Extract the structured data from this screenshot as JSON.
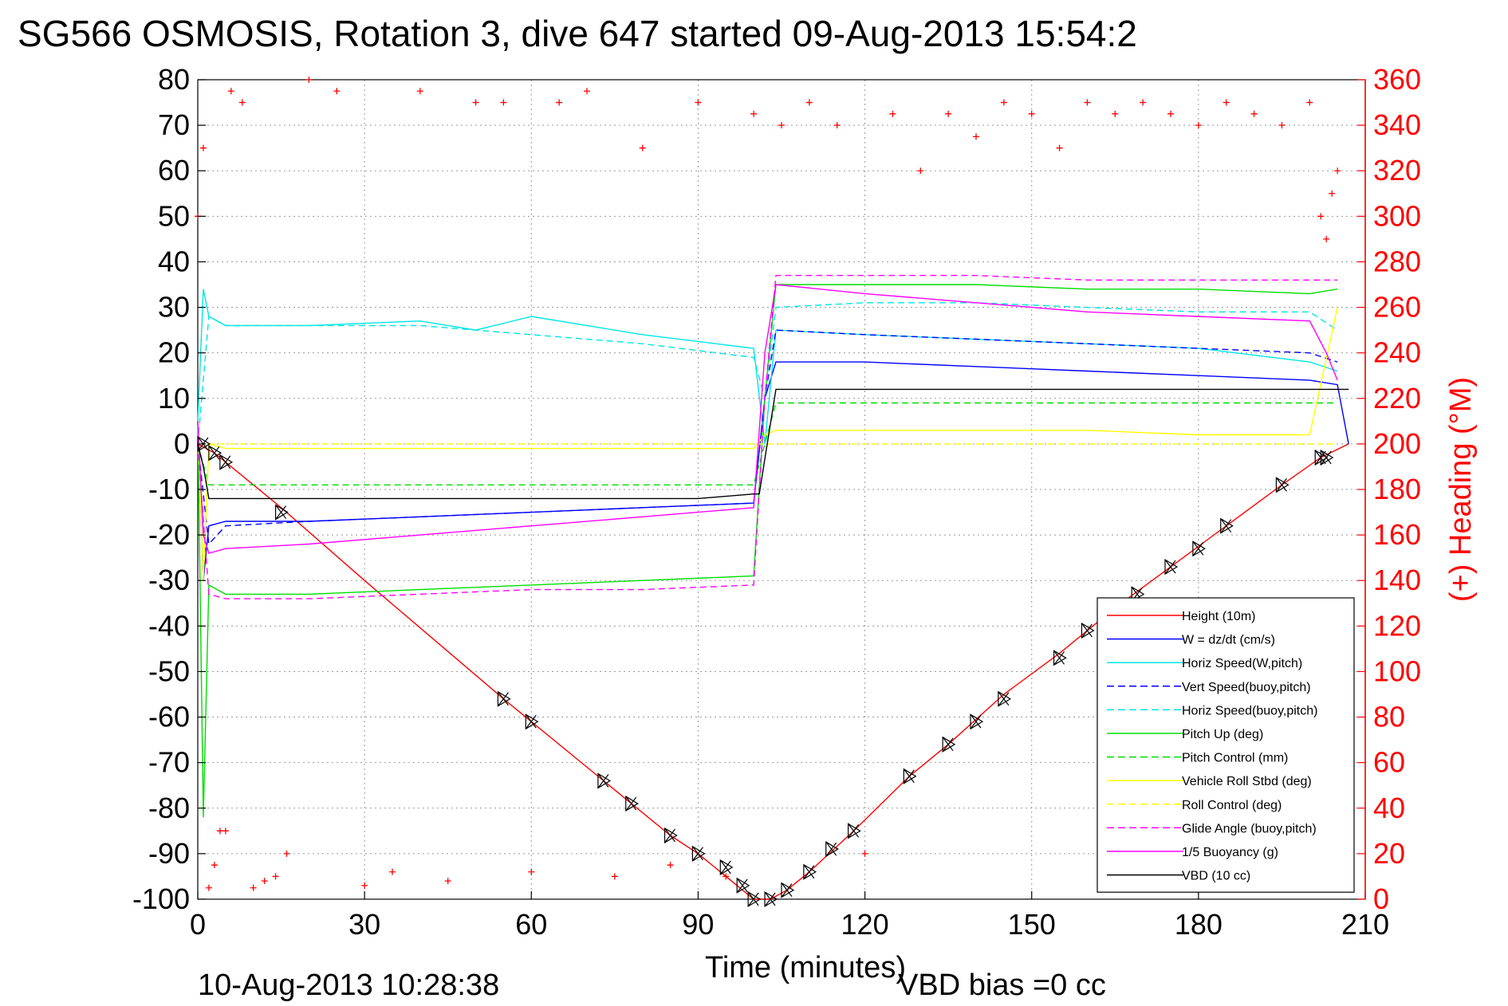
{
  "chart_data": {
    "type": "line",
    "title": "SG566 OSMOSIS, Rotation 3, dive 647 started 09-Aug-2013 15:54:2",
    "xlabel": "Time (minutes)",
    "ylabel_right": "(+) Heading (°M)",
    "xlim": [
      0,
      210
    ],
    "ylim": [
      -100,
      80
    ],
    "ylim_right": [
      0,
      360
    ],
    "x_ticks": [
      "0",
      "30",
      "60",
      "90",
      "120",
      "150",
      "180",
      "210"
    ],
    "y_ticks": [
      "80",
      "70",
      "60",
      "50",
      "40",
      "30",
      "20",
      "10",
      "0",
      "-10",
      "-20",
      "-30",
      "-40",
      "-50",
      "-60",
      "-70",
      "-80",
      "-90",
      "-100"
    ],
    "y_ticks_right": [
      "360",
      "340",
      "320",
      "300",
      "280",
      "260",
      "240",
      "220",
      "200",
      "180",
      "160",
      "140",
      "120",
      "100",
      "80",
      "60",
      "40",
      "20",
      "0"
    ],
    "grid": true,
    "legend_position": "bottom-right",
    "footer_left": "10-Aug-2013 10:28:38",
    "footer_right": "VBD bias =0 cc",
    "series": [
      {
        "name": "Height (10m)",
        "color": "#ff0000",
        "style": "solid",
        "x": [
          0,
          3,
          5,
          15,
          30,
          55,
          60,
          73,
          78,
          85,
          90,
          95,
          100,
          103,
          106,
          110,
          118,
          128,
          135,
          145,
          155,
          165,
          175,
          185,
          195,
          202,
          207
        ],
        "y": [
          0,
          -2,
          -4,
          -14,
          -30,
          -56,
          -61,
          -74,
          -79,
          -86,
          -90,
          -95,
          -100,
          -100,
          -98,
          -94,
          -85,
          -73,
          -66,
          -55,
          -46,
          -36,
          -27,
          -18,
          -9,
          -3,
          0
        ]
      },
      {
        "name": "W = dz/dt (cm/s)",
        "color": "#0000ff",
        "style": "solid",
        "x": [
          0,
          1,
          2,
          5,
          20,
          40,
          60,
          80,
          100,
          102,
          104,
          120,
          140,
          160,
          180,
          200,
          205,
          207
        ],
        "y": [
          5,
          -30,
          -18,
          -17,
          -17,
          -16,
          -15,
          -14,
          -13,
          10,
          18,
          18,
          17,
          16,
          15,
          14,
          13,
          0
        ]
      },
      {
        "name": "Horiz Speed(W,pitch)",
        "color": "#00e5e5",
        "style": "solid",
        "x": [
          0,
          1,
          2,
          5,
          20,
          40,
          50,
          60,
          80,
          100,
          102,
          104,
          120,
          140,
          160,
          180,
          200,
          205
        ],
        "y": [
          5,
          34,
          28,
          26,
          26,
          27,
          25,
          28,
          24,
          21,
          0,
          25,
          24,
          23,
          22,
          21,
          18,
          16
        ]
      },
      {
        "name": "Vert Speed(buoy,pitch)",
        "color": "#0000ff",
        "style": "dashed",
        "x": [
          0,
          2,
          5,
          20,
          40,
          60,
          80,
          100,
          102,
          104,
          120,
          140,
          160,
          180,
          200,
          205
        ],
        "y": [
          0,
          -22,
          -18,
          -17,
          -16,
          -15,
          -14,
          -13,
          10,
          25,
          24,
          23,
          22,
          21,
          20,
          18
        ]
      },
      {
        "name": "Horiz Speed(buoy,pitch)",
        "color": "#00e5e5",
        "style": "dashed",
        "x": [
          0,
          2,
          5,
          20,
          40,
          60,
          80,
          100,
          102,
          104,
          120,
          140,
          160,
          180,
          200,
          205
        ],
        "y": [
          0,
          28,
          26,
          26,
          26,
          24,
          22,
          19,
          10,
          30,
          31,
          31,
          30,
          29,
          29,
          25
        ]
      },
      {
        "name": "Pitch Up (deg)",
        "color": "#00dd00",
        "style": "solid",
        "x": [
          0,
          1,
          2,
          5,
          20,
          40,
          60,
          80,
          100,
          102,
          104,
          120,
          140,
          160,
          180,
          200,
          205
        ],
        "y": [
          5,
          -82,
          -31,
          -33,
          -33,
          -32,
          -31,
          -30,
          -29,
          10,
          35,
          35,
          35,
          34,
          34,
          33,
          34
        ]
      },
      {
        "name": "Pitch Control (mm)",
        "color": "#00dd00",
        "style": "dashed",
        "x": [
          0,
          2,
          5,
          30,
          60,
          90,
          100,
          102,
          104,
          130,
          160,
          190,
          205
        ],
        "y": [
          0,
          -9,
          -9,
          -9,
          -9,
          -9,
          -9,
          0,
          9,
          9,
          9,
          9,
          9
        ]
      },
      {
        "name": "Vehicle Roll Stbd (deg)",
        "color": "#ffff00",
        "style": "solid",
        "x": [
          0,
          1,
          2,
          5,
          16,
          30,
          60,
          90,
          100,
          102,
          104,
          120,
          140,
          160,
          180,
          200,
          205
        ],
        "y": [
          5,
          -30,
          0,
          -1,
          -1,
          -1,
          -1,
          -1,
          -1,
          2,
          3,
          3,
          3,
          3,
          2,
          2,
          30
        ]
      },
      {
        "name": "Roll Control (deg)",
        "color": "#ffff00",
        "style": "dashed",
        "x": [
          0,
          2,
          5,
          30,
          60,
          90,
          100,
          102,
          104,
          130,
          160,
          190,
          205
        ],
        "y": [
          0,
          0,
          0,
          0,
          0,
          0,
          0,
          0,
          0,
          0,
          0,
          0,
          0
        ]
      },
      {
        "name": "Glide Angle (buoy,pitch)",
        "color": "#ff00ff",
        "style": "dashed",
        "x": [
          0,
          2,
          5,
          20,
          40,
          60,
          80,
          100,
          102,
          104,
          120,
          140,
          160,
          180,
          200,
          205
        ],
        "y": [
          0,
          -33,
          -34,
          -34,
          -33,
          -32,
          -32,
          -31,
          10,
          37,
          37,
          37,
          36,
          36,
          36,
          36
        ]
      },
      {
        "name": "1/5 Buoyancy (g)",
        "color": "#ff00ff",
        "style": "solid",
        "x": [
          0,
          1,
          2,
          5,
          20,
          40,
          60,
          80,
          100,
          102,
          104,
          120,
          140,
          160,
          180,
          200,
          203,
          205
        ],
        "y": [
          5,
          -20,
          -24,
          -23,
          -22,
          -20,
          -18,
          -16,
          -14,
          20,
          35,
          33,
          31,
          29,
          28,
          27,
          20,
          14
        ]
      },
      {
        "name": "VBD (10 cc)",
        "color": "#000000",
        "style": "solid",
        "x": [
          0,
          1,
          2,
          30,
          60,
          90,
          100,
          101,
          104,
          120,
          150,
          180,
          207
        ],
        "y": [
          0,
          -5,
          -12,
          -12,
          -12,
          -12,
          -11,
          -11,
          12,
          12,
          12,
          12,
          12
        ]
      }
    ],
    "heading_right_axis": {
      "name": "(+) Heading (°M)",
      "color": "#ff0000",
      "x": [
        0,
        1,
        2,
        3,
        4,
        5,
        6,
        8,
        10,
        12,
        14,
        16,
        20,
        25,
        30,
        35,
        40,
        45,
        50,
        55,
        60,
        65,
        70,
        75,
        80,
        85,
        90,
        95,
        100,
        105,
        110,
        115,
        120,
        125,
        130,
        135,
        140,
        145,
        150,
        155,
        160,
        165,
        170,
        175,
        180,
        185,
        190,
        195,
        200,
        202,
        203,
        204,
        205
      ],
      "y": [
        300,
        330,
        5,
        15,
        30,
        30,
        355,
        350,
        5,
        8,
        10,
        20,
        360,
        355,
        6,
        12,
        355,
        8,
        350,
        350,
        12,
        350,
        355,
        10,
        330,
        15,
        350,
        10,
        345,
        340,
        350,
        340,
        20,
        345,
        320,
        345,
        335,
        350,
        345,
        330,
        350,
        345,
        350,
        345,
        340,
        350,
        345,
        340,
        350,
        300,
        290,
        310,
        320
      ]
    },
    "markers": {
      "symbols": "triangles and crossed triangles",
      "x": [
        1,
        3,
        5,
        15,
        55,
        60,
        73,
        78,
        85,
        90,
        95,
        98,
        100,
        103,
        106,
        110,
        114,
        118,
        128,
        135,
        140,
        145,
        155,
        160,
        169,
        175,
        180,
        185,
        195,
        202,
        203
      ],
      "y": [
        0,
        -2,
        -4,
        -15,
        -56,
        -61,
        -74,
        -79,
        -86,
        -90,
        -93,
        -97,
        -100,
        -100,
        -98,
        -94,
        -89,
        -85,
        -73,
        -66,
        -61,
        -56,
        -47,
        -41,
        -33,
        -27,
        -23,
        -18,
        -9,
        -3,
        -3
      ]
    }
  }
}
